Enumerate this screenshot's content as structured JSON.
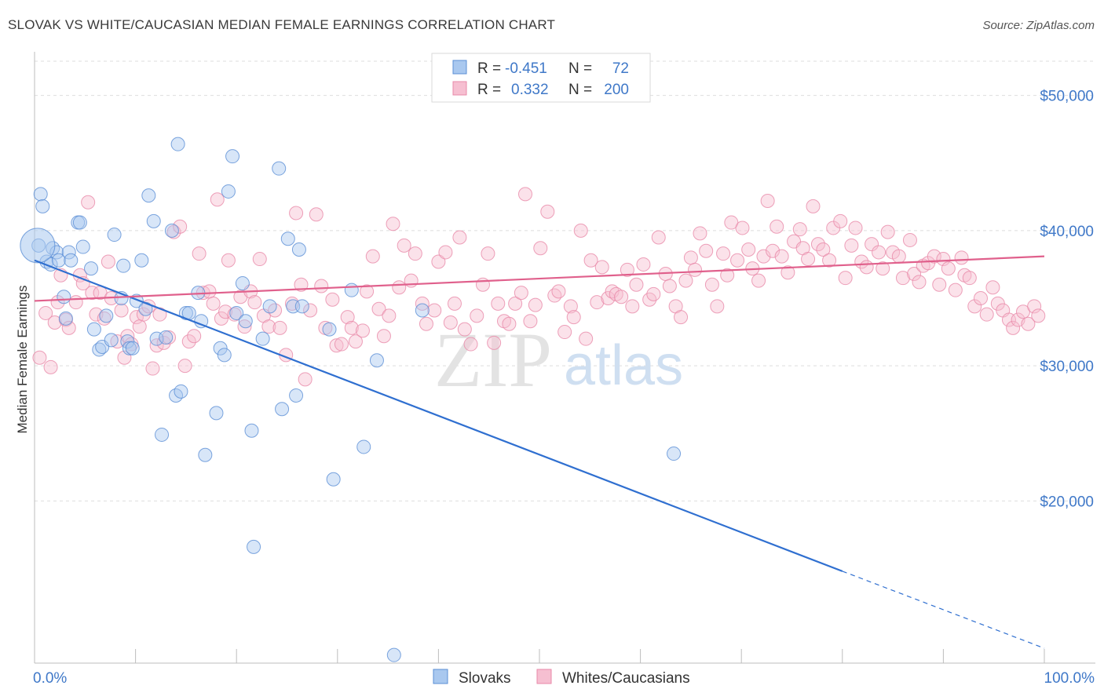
{
  "title": "SLOVAK VS WHITE/CAUCASIAN MEDIAN FEMALE EARNINGS CORRELATION CHART",
  "source": "Source: ZipAtlas.com",
  "watermark": {
    "zip": "ZIP",
    "atlas": "atlas"
  },
  "legend": {
    "rows": [
      {
        "r_label": "R =",
        "r_value": "-0.451",
        "n_label": "N =",
        "n_value": "72"
      },
      {
        "r_label": "R =",
        "r_value": "0.332",
        "n_label": "N =",
        "n_value": "200"
      }
    ]
  },
  "bottom_legend": [
    "Slovaks",
    "Whites/Caucasians"
  ],
  "colors": {
    "slovak_fill": "#a9c8ef",
    "slovak_stroke": "#5b8fd6",
    "slovak_line": "#2f6fd0",
    "white_fill": "#f6bfd1",
    "white_stroke": "#e889a9",
    "white_line": "#e0608c",
    "value_text": "#3f78c8",
    "grid": "#dedede"
  },
  "chart_data": {
    "type": "scatter",
    "xlabel": "",
    "ylabel": "Median Female Earnings",
    "xlim": [
      0,
      100
    ],
    "ylim": [
      8000,
      53000
    ],
    "y_ticks": [
      {
        "value": 20000,
        "label": "$20,000"
      },
      {
        "value": 30000,
        "label": "$30,000"
      },
      {
        "value": 40000,
        "label": "$40,000"
      },
      {
        "value": 50000,
        "label": "$50,000"
      }
    ],
    "x_ticks": [
      {
        "value": 0,
        "label": "0.0%"
      },
      {
        "value": 100,
        "label": "100.0%"
      }
    ],
    "grid": "horizontal dashed",
    "legend_position": "top-center",
    "series": [
      {
        "name": "Slovaks",
        "points": [
          [
            0.4,
            38900
          ],
          [
            0.6,
            42700
          ],
          [
            0.8,
            41800
          ],
          [
            1.2,
            37700
          ],
          [
            1.6,
            37500
          ],
          [
            1.8,
            38700
          ],
          [
            2.2,
            38400
          ],
          [
            2.4,
            37800
          ],
          [
            2.9,
            35100
          ],
          [
            3.1,
            33500
          ],
          [
            3.4,
            38400
          ],
          [
            3.6,
            37800
          ],
          [
            4.3,
            40600
          ],
          [
            4.5,
            40600
          ],
          [
            4.8,
            38800
          ],
          [
            5.6,
            37200
          ],
          [
            5.9,
            32700
          ],
          [
            6.4,
            31200
          ],
          [
            6.7,
            31400
          ],
          [
            7.1,
            33700
          ],
          [
            7.6,
            31900
          ],
          [
            7.9,
            39700
          ],
          [
            8.6,
            35000
          ],
          [
            8.8,
            37400
          ],
          [
            9.2,
            31800
          ],
          [
            9.4,
            31300
          ],
          [
            9.7,
            31300
          ],
          [
            10.1,
            34800
          ],
          [
            10.6,
            37800
          ],
          [
            11.0,
            34200
          ],
          [
            11.3,
            42600
          ],
          [
            11.8,
            40700
          ],
          [
            12.1,
            32000
          ],
          [
            12.6,
            24900
          ],
          [
            13.0,
            32100
          ],
          [
            13.6,
            40000
          ],
          [
            14.0,
            27800
          ],
          [
            14.2,
            46400
          ],
          [
            14.5,
            28100
          ],
          [
            15.0,
            33900
          ],
          [
            15.3,
            33900
          ],
          [
            16.2,
            35400
          ],
          [
            16.5,
            33300
          ],
          [
            16.9,
            23400
          ],
          [
            18.0,
            26500
          ],
          [
            18.4,
            31300
          ],
          [
            18.8,
            30800
          ],
          [
            19.2,
            42900
          ],
          [
            19.6,
            45500
          ],
          [
            20.0,
            33900
          ],
          [
            20.6,
            36100
          ],
          [
            20.9,
            33300
          ],
          [
            21.5,
            25200
          ],
          [
            21.7,
            16600
          ],
          [
            22.6,
            32000
          ],
          [
            23.3,
            34400
          ],
          [
            24.2,
            44600
          ],
          [
            24.5,
            26800
          ],
          [
            25.1,
            39400
          ],
          [
            25.6,
            34400
          ],
          [
            25.9,
            27800
          ],
          [
            26.2,
            38600
          ],
          [
            26.5,
            34400
          ],
          [
            29.2,
            32700
          ],
          [
            29.6,
            21600
          ],
          [
            31.4,
            35600
          ],
          [
            32.6,
            24000
          ],
          [
            33.9,
            30400
          ],
          [
            35.6,
            8600
          ],
          [
            38.4,
            34100
          ],
          [
            63.3,
            23500
          ],
          [
            0.3,
            38900
          ]
        ]
      },
      {
        "name": "Whites/Caucasians",
        "points": [
          [
            0.5,
            30600
          ],
          [
            1.1,
            33900
          ],
          [
            1.6,
            29900
          ],
          [
            2.0,
            33200
          ],
          [
            2.3,
            34700
          ],
          [
            2.6,
            36700
          ],
          [
            3.1,
            33400
          ],
          [
            3.4,
            32800
          ],
          [
            4.1,
            34700
          ],
          [
            4.5,
            36700
          ],
          [
            4.8,
            36100
          ],
          [
            5.3,
            42100
          ],
          [
            5.7,
            35400
          ],
          [
            6.1,
            33800
          ],
          [
            6.5,
            35400
          ],
          [
            6.9,
            33500
          ],
          [
            7.3,
            37700
          ],
          [
            7.6,
            35000
          ],
          [
            8.2,
            31800
          ],
          [
            8.6,
            34100
          ],
          [
            8.9,
            30600
          ],
          [
            9.2,
            32200
          ],
          [
            9.6,
            31600
          ],
          [
            10.1,
            33600
          ],
          [
            10.4,
            32900
          ],
          [
            10.8,
            33800
          ],
          [
            11.3,
            34400
          ],
          [
            11.7,
            29800
          ],
          [
            12.1,
            31500
          ],
          [
            12.4,
            33800
          ],
          [
            12.8,
            31700
          ],
          [
            13.3,
            32100
          ],
          [
            13.8,
            39900
          ],
          [
            14.4,
            40300
          ],
          [
            14.9,
            30000
          ],
          [
            15.3,
            31800
          ],
          [
            15.8,
            32200
          ],
          [
            16.3,
            38300
          ],
          [
            16.7,
            35400
          ],
          [
            17.3,
            35500
          ],
          [
            17.7,
            34600
          ],
          [
            18.1,
            42300
          ],
          [
            18.5,
            33500
          ],
          [
            18.9,
            34000
          ],
          [
            19.2,
            37800
          ],
          [
            19.8,
            33800
          ],
          [
            20.4,
            35100
          ],
          [
            20.8,
            32900
          ],
          [
            21.4,
            35500
          ],
          [
            21.8,
            34700
          ],
          [
            22.3,
            37900
          ],
          [
            22.7,
            33700
          ],
          [
            23.2,
            32900
          ],
          [
            23.8,
            34100
          ],
          [
            24.3,
            32800
          ],
          [
            24.9,
            30800
          ],
          [
            25.5,
            34600
          ],
          [
            25.9,
            41300
          ],
          [
            26.4,
            36000
          ],
          [
            26.8,
            29000
          ],
          [
            27.3,
            34100
          ],
          [
            27.9,
            41200
          ],
          [
            28.4,
            35900
          ],
          [
            28.8,
            32800
          ],
          [
            29.5,
            34900
          ],
          [
            29.9,
            31500
          ],
          [
            30.4,
            31600
          ],
          [
            31.0,
            33600
          ],
          [
            31.4,
            32800
          ],
          [
            31.8,
            31800
          ],
          [
            32.5,
            32600
          ],
          [
            32.9,
            35500
          ],
          [
            33.5,
            38100
          ],
          [
            34.1,
            34200
          ],
          [
            34.6,
            32200
          ],
          [
            35.1,
            33700
          ],
          [
            35.5,
            40500
          ],
          [
            36.1,
            35800
          ],
          [
            36.6,
            38900
          ],
          [
            37.3,
            36300
          ],
          [
            37.7,
            38300
          ],
          [
            38.4,
            34600
          ],
          [
            38.8,
            33100
          ],
          [
            39.6,
            34100
          ],
          [
            40.0,
            37700
          ],
          [
            40.7,
            38400
          ],
          [
            41.2,
            33200
          ],
          [
            41.6,
            34600
          ],
          [
            42.1,
            39500
          ],
          [
            42.6,
            32700
          ],
          [
            43.2,
            31600
          ],
          [
            43.8,
            33700
          ],
          [
            44.4,
            36000
          ],
          [
            44.9,
            38300
          ],
          [
            45.5,
            31700
          ],
          [
            45.9,
            34600
          ],
          [
            46.5,
            33300
          ],
          [
            47.0,
            33100
          ],
          [
            47.6,
            34600
          ],
          [
            48.2,
            35400
          ],
          [
            48.6,
            42700
          ],
          [
            49.1,
            33300
          ],
          [
            49.6,
            34500
          ],
          [
            50.1,
            38700
          ],
          [
            50.8,
            41400
          ],
          [
            51.5,
            35200
          ],
          [
            51.9,
            35500
          ],
          [
            52.5,
            32500
          ],
          [
            53.1,
            34400
          ],
          [
            53.4,
            33600
          ],
          [
            54.1,
            40000
          ],
          [
            54.6,
            32000
          ],
          [
            55.1,
            37800
          ],
          [
            55.7,
            34700
          ],
          [
            56.2,
            37300
          ],
          [
            56.8,
            35000
          ],
          [
            57.2,
            35500
          ],
          [
            57.6,
            35300
          ],
          [
            58.1,
            35100
          ],
          [
            58.7,
            37100
          ],
          [
            59.2,
            34400
          ],
          [
            59.6,
            36000
          ],
          [
            60.3,
            37500
          ],
          [
            60.9,
            34900
          ],
          [
            61.3,
            35300
          ],
          [
            61.8,
            39500
          ],
          [
            62.5,
            36800
          ],
          [
            62.9,
            35900
          ],
          [
            63.5,
            34400
          ],
          [
            64.0,
            33600
          ],
          [
            64.5,
            36300
          ],
          [
            65.0,
            38000
          ],
          [
            65.4,
            37100
          ],
          [
            65.9,
            39800
          ],
          [
            66.5,
            38500
          ],
          [
            67.1,
            36000
          ],
          [
            67.6,
            34400
          ],
          [
            68.2,
            38300
          ],
          [
            68.6,
            36700
          ],
          [
            69.0,
            40600
          ],
          [
            69.6,
            37800
          ],
          [
            70.1,
            40200
          ],
          [
            70.7,
            38600
          ],
          [
            71.1,
            37200
          ],
          [
            71.7,
            36300
          ],
          [
            72.2,
            38100
          ],
          [
            72.6,
            42200
          ],
          [
            73.1,
            38500
          ],
          [
            73.5,
            40300
          ],
          [
            74.0,
            38100
          ],
          [
            74.6,
            36900
          ],
          [
            75.2,
            39200
          ],
          [
            75.8,
            40100
          ],
          [
            76.1,
            38700
          ],
          [
            76.6,
            37900
          ],
          [
            77.1,
            41800
          ],
          [
            77.6,
            39000
          ],
          [
            78.1,
            38600
          ],
          [
            78.7,
            37800
          ],
          [
            79.1,
            40200
          ],
          [
            79.8,
            40700
          ],
          [
            80.3,
            36500
          ],
          [
            80.9,
            38900
          ],
          [
            81.3,
            40200
          ],
          [
            81.9,
            37700
          ],
          [
            82.4,
            37300
          ],
          [
            82.9,
            39000
          ],
          [
            83.6,
            38400
          ],
          [
            84.0,
            37200
          ],
          [
            84.5,
            39900
          ],
          [
            85.0,
            38400
          ],
          [
            85.6,
            38100
          ],
          [
            86.0,
            36500
          ],
          [
            86.7,
            39300
          ],
          [
            87.1,
            36800
          ],
          [
            87.6,
            36200
          ],
          [
            88.0,
            37400
          ],
          [
            88.5,
            37600
          ],
          [
            89.1,
            38100
          ],
          [
            89.6,
            36000
          ],
          [
            90.0,
            37900
          ],
          [
            90.5,
            37200
          ],
          [
            91.2,
            35600
          ],
          [
            91.8,
            38000
          ],
          [
            92.1,
            36700
          ],
          [
            92.6,
            36500
          ],
          [
            93.1,
            34400
          ],
          [
            93.7,
            35000
          ],
          [
            94.3,
            33800
          ],
          [
            94.9,
            35800
          ],
          [
            95.4,
            34600
          ],
          [
            95.9,
            34100
          ],
          [
            96.5,
            33400
          ],
          [
            96.9,
            32800
          ],
          [
            97.4,
            33400
          ],
          [
            97.9,
            34000
          ],
          [
            98.4,
            33100
          ],
          [
            99.0,
            34400
          ],
          [
            99.4,
            33700
          ]
        ]
      }
    ],
    "trendlines": [
      {
        "series": "Slovaks",
        "from": [
          0,
          37800
        ],
        "to": [
          80,
          14800
        ],
        "dashed_to": [
          100,
          9100
        ]
      },
      {
        "series": "Whites/Caucasians",
        "from": [
          0,
          34800
        ],
        "to": [
          100,
          38100
        ]
      }
    ]
  }
}
